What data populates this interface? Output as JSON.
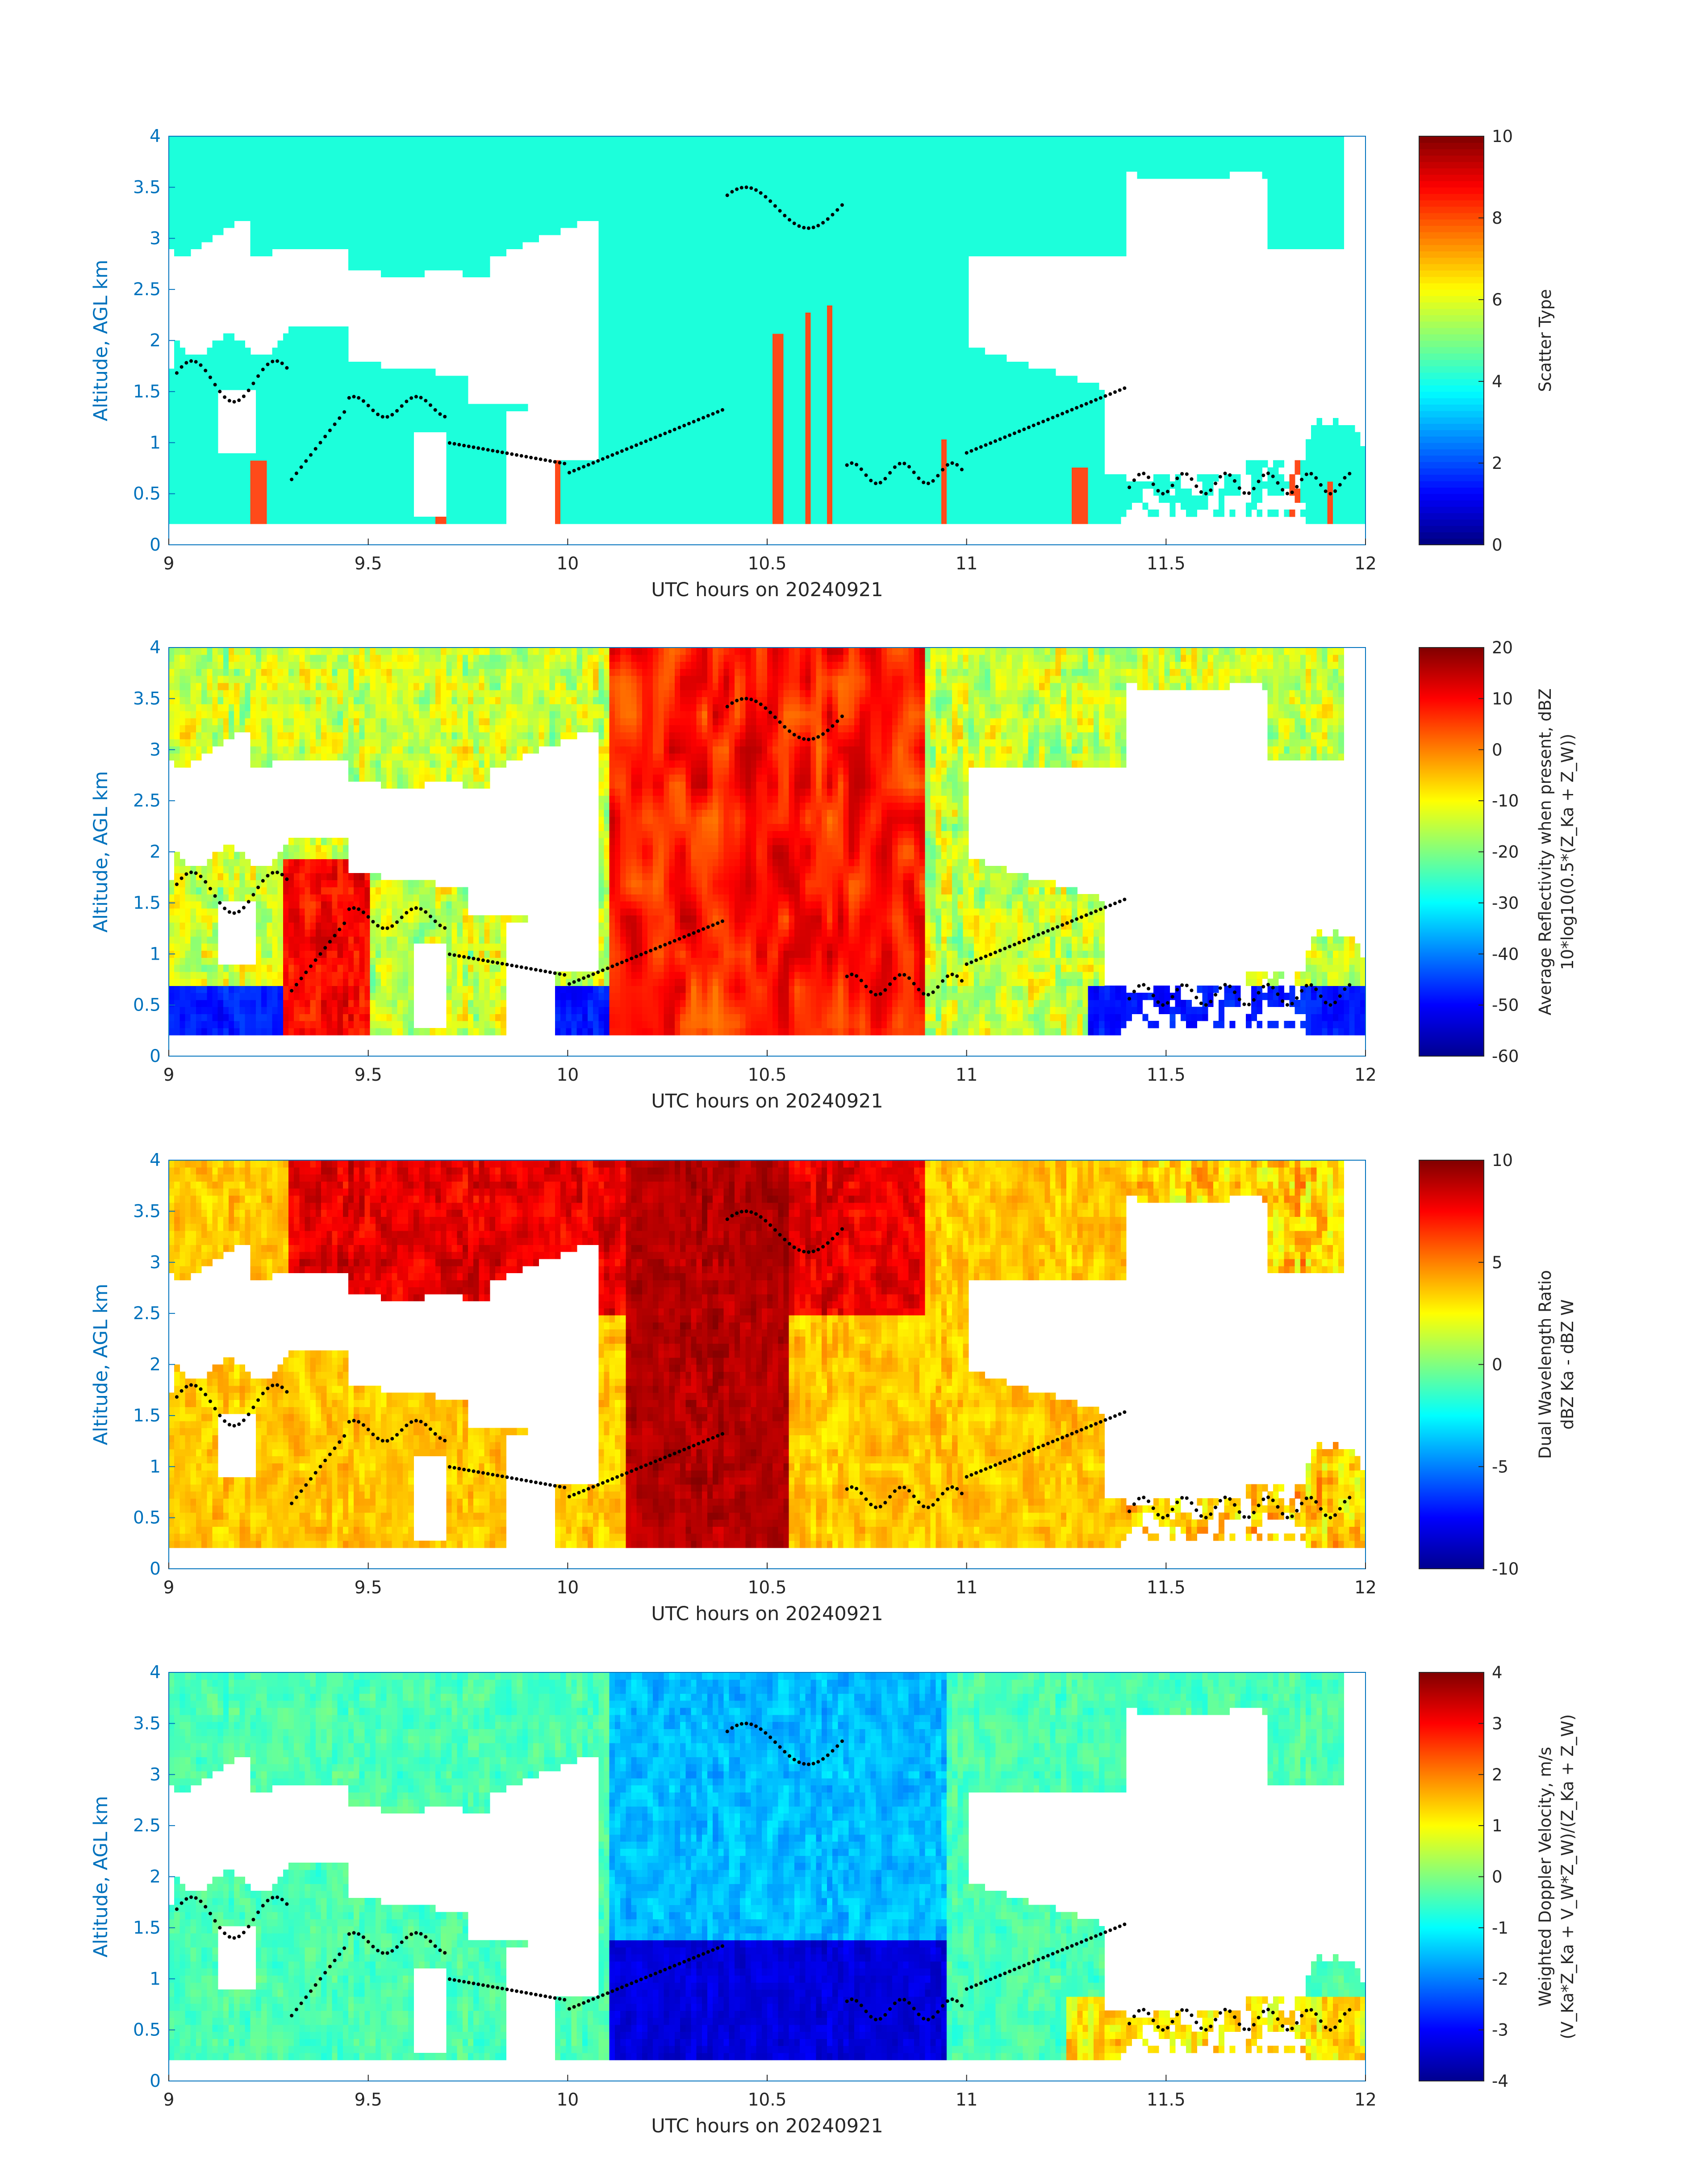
{
  "chart_data": [
    {
      "type": "heatmap",
      "xlabel": "UTC hours on 20240921",
      "ylabel": "Altitude, AGL km",
      "xlim": [
        9,
        12
      ],
      "ylim": [
        0,
        4
      ],
      "xticks": [
        "9",
        "9.5",
        "10",
        "10.5",
        "11",
        "11.5",
        "12"
      ],
      "yticks": [
        "0",
        "0.5",
        "1",
        "1.5",
        "2",
        "2.5",
        "3",
        "3.5",
        "4"
      ],
      "colorbar": {
        "label_lines": [
          "Scatter Type"
        ],
        "ticks": [
          "0",
          "2",
          "4",
          "6",
          "8",
          "10"
        ],
        "range": [
          0,
          10
        ]
      },
      "grid": false
    },
    {
      "type": "heatmap",
      "xlabel": "UTC hours on 20240921",
      "ylabel": "Altitude, AGL km",
      "xlim": [
        9,
        12
      ],
      "ylim": [
        0,
        4
      ],
      "xticks": [
        "9",
        "9.5",
        "10",
        "10.5",
        "11",
        "11.5",
        "12"
      ],
      "yticks": [
        "0",
        "0.5",
        "1",
        "1.5",
        "2",
        "2.5",
        "3",
        "3.5",
        "4"
      ],
      "colorbar": {
        "label_lines": [
          "Average Reflectivity when present, dBZ",
          "10*log10(0.5*(Z_Ka + Z_W))"
        ],
        "ticks": [
          "-60",
          "-50",
          "-40",
          "-30",
          "-20",
          "-10",
          "0",
          "10",
          "20"
        ],
        "range": [
          -60,
          20
        ]
      },
      "grid": false
    },
    {
      "type": "heatmap",
      "xlabel": "UTC hours on 20240921",
      "ylabel": "Altitude, AGL km",
      "xlim": [
        9,
        12
      ],
      "ylim": [
        0,
        4
      ],
      "xticks": [
        "9",
        "9.5",
        "10",
        "10.5",
        "11",
        "11.5",
        "12"
      ],
      "yticks": [
        "0",
        "0.5",
        "1",
        "1.5",
        "2",
        "2.5",
        "3",
        "3.5",
        "4"
      ],
      "colorbar": {
        "label_lines": [
          "Dual Wavelength Ratio",
          "dBZ Ka - dBZ W"
        ],
        "ticks": [
          "-10",
          "-5",
          "0",
          "5",
          "10"
        ],
        "range": [
          -10,
          10
        ]
      },
      "grid": false
    },
    {
      "type": "heatmap",
      "xlabel": "UTC hours on 20240921",
      "ylabel": "Altitude, AGL km",
      "xlim": [
        9,
        12
      ],
      "ylim": [
        0,
        4
      ],
      "xticks": [
        "9",
        "9.5",
        "10",
        "10.5",
        "11",
        "11.5",
        "12"
      ],
      "yticks": [
        "0",
        "0.5",
        "1",
        "1.5",
        "2",
        "2.5",
        "3",
        "3.5",
        "4"
      ],
      "colorbar": {
        "label_lines": [
          "Weighted Doppler Velocity, m/s",
          "(V_Ka*Z_Ka + V_W*Z_W)/(Z_Ka + Z_W)"
        ],
        "ticks": [
          "-4",
          "-3",
          "-2",
          "-1",
          "0",
          "1",
          "2",
          "3",
          "4"
        ],
        "range": [
          -4,
          4
        ]
      },
      "grid": false
    }
  ],
  "colors": {
    "axis_blue": "#0072BD",
    "scatter_cyan": "#1CFFDB",
    "scatter_orange": "#FF4A1A",
    "marker": "#000000"
  }
}
